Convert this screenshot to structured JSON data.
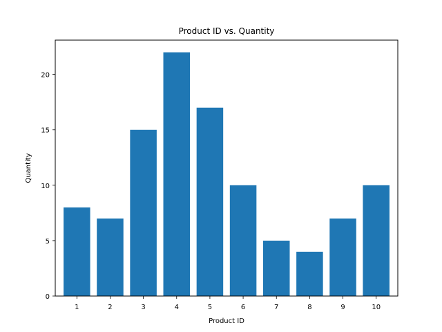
{
  "chart_data": {
    "type": "bar",
    "title": "Product ID vs. Quantity",
    "xlabel": "Product ID",
    "ylabel": "Quantity",
    "categories": [
      "1",
      "2",
      "3",
      "4",
      "5",
      "6",
      "7",
      "8",
      "9",
      "10"
    ],
    "values": [
      8,
      7,
      15,
      22,
      17,
      10,
      5,
      4,
      7,
      10
    ],
    "ylim": [
      0,
      23.1
    ],
    "yticks": [
      0,
      5,
      10,
      15,
      20
    ],
    "grid": false,
    "bar_color": "#1f77b4"
  }
}
